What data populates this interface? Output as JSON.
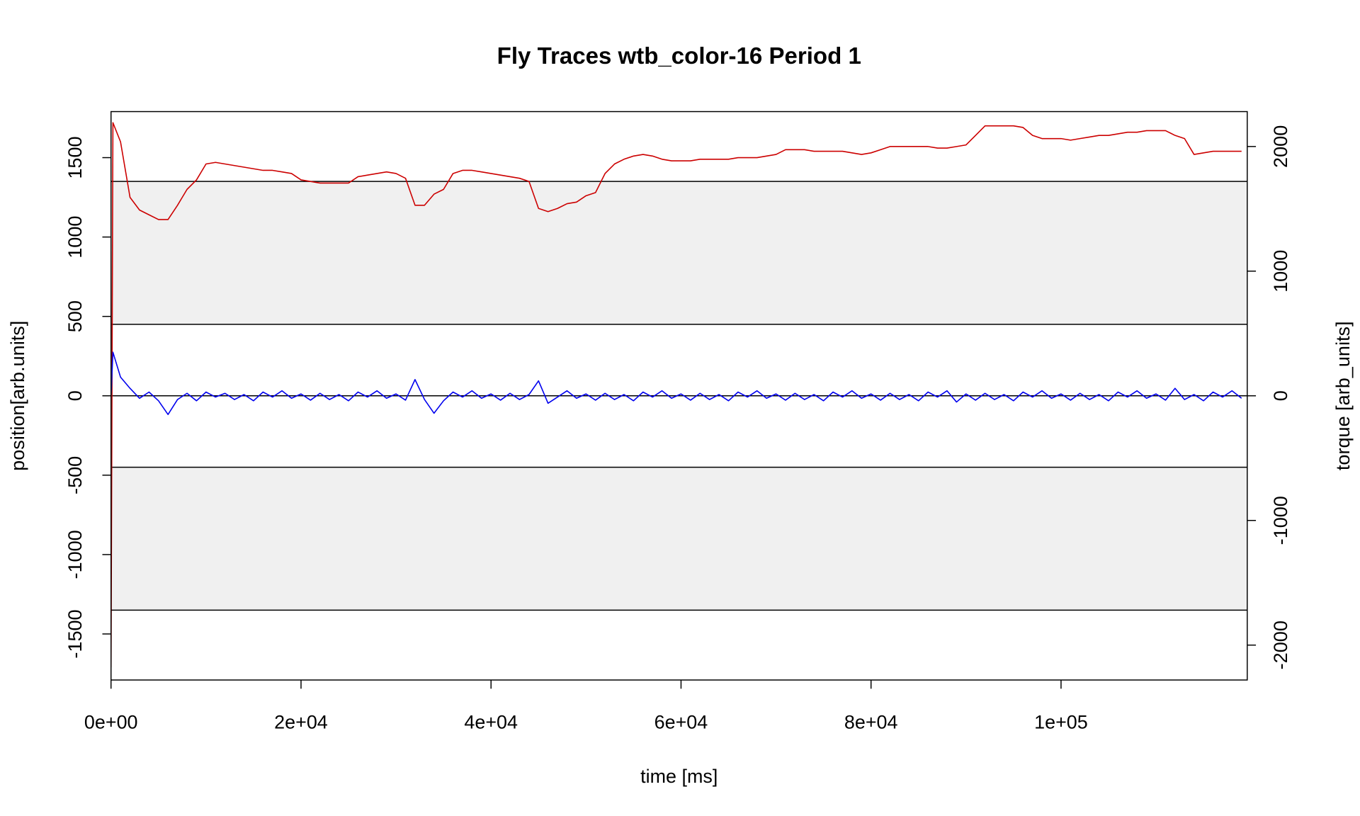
{
  "chart_data": {
    "type": "line",
    "title": "Fly Traces wtb_color-16 Period 1",
    "x_label": "time [ms]",
    "y_label": "position[arb.units]",
    "y2_label": "torque [arb_units]",
    "xlim": [
      0,
      119600
    ],
    "ylim": [
      -1790,
      1790
    ],
    "y2lim": [
      -2280,
      2280
    ],
    "xticks": [
      {
        "value": 0,
        "label": "0e+00"
      },
      {
        "value": 20000,
        "label": "2e+04"
      },
      {
        "value": 40000,
        "label": "4e+04"
      },
      {
        "value": 60000,
        "label": "6e+04"
      },
      {
        "value": 80000,
        "label": "8e+04"
      },
      {
        "value": 100000,
        "label": "1e+05"
      }
    ],
    "yticks": [
      -1500,
      -1000,
      -500,
      0,
      500,
      1000,
      1500
    ],
    "y2ticks": [
      -2000,
      -1000,
      0,
      1000,
      2000
    ],
    "bands": [
      {
        "from": 450,
        "to": 1350,
        "color": "#f0f0f0"
      },
      {
        "from": -1350,
        "to": -450,
        "color": "#f0f0f0"
      }
    ],
    "hlines": [
      0
    ],
    "x": [
      0,
      200,
      1000,
      2000,
      3000,
      4000,
      5000,
      6000,
      7000,
      8000,
      9000,
      10000,
      11000,
      12000,
      13000,
      14000,
      15000,
      16000,
      17000,
      18000,
      19000,
      20000,
      21000,
      22000,
      23000,
      24000,
      25000,
      26000,
      27000,
      28000,
      29000,
      30000,
      31000,
      32000,
      33000,
      34000,
      35000,
      36000,
      37000,
      38000,
      39000,
      40000,
      41000,
      42000,
      43000,
      44000,
      45000,
      46000,
      47000,
      48000,
      49000,
      50000,
      51000,
      52000,
      53000,
      54000,
      55000,
      56000,
      57000,
      58000,
      59000,
      60000,
      61000,
      62000,
      63000,
      64000,
      65000,
      66000,
      67000,
      68000,
      69000,
      70000,
      71000,
      72000,
      73000,
      74000,
      75000,
      76000,
      77000,
      78000,
      79000,
      80000,
      81000,
      82000,
      83000,
      84000,
      85000,
      86000,
      87000,
      88000,
      89000,
      90000,
      91000,
      92000,
      93000,
      94000,
      95000,
      96000,
      97000,
      98000,
      99000,
      100000,
      101000,
      102000,
      103000,
      104000,
      105000,
      106000,
      107000,
      108000,
      109000,
      110000,
      111000,
      112000,
      113000,
      114000,
      115000,
      116000,
      117000,
      118000,
      119000
    ],
    "series": [
      {
        "name": "position",
        "color": "#cc0000",
        "values": [
          -1710,
          1720,
          1600,
          1250,
          1170,
          1140,
          1110,
          1110,
          1200,
          1300,
          1360,
          1460,
          1470,
          1460,
          1450,
          1440,
          1430,
          1420,
          1420,
          1410,
          1400,
          1360,
          1350,
          1340,
          1340,
          1340,
          1340,
          1380,
          1390,
          1400,
          1410,
          1400,
          1370,
          1200,
          1200,
          1270,
          1300,
          1400,
          1420,
          1420,
          1410,
          1400,
          1390,
          1380,
          1370,
          1350,
          1180,
          1160,
          1180,
          1210,
          1220,
          1260,
          1280,
          1400,
          1460,
          1490,
          1510,
          1520,
          1510,
          1490,
          1480,
          1480,
          1480,
          1490,
          1490,
          1490,
          1490,
          1500,
          1500,
          1500,
          1510,
          1520,
          1550,
          1550,
          1550,
          1540,
          1540,
          1540,
          1540,
          1530,
          1520,
          1530,
          1550,
          1570,
          1570,
          1570,
          1570,
          1570,
          1560,
          1560,
          1570,
          1580,
          1640,
          1700,
          1700,
          1700,
          1700,
          1690,
          1640,
          1620,
          1620,
          1620,
          1610,
          1620,
          1630,
          1640,
          1640,
          1650,
          1660,
          1660,
          1670,
          1670,
          1670,
          1640,
          1620,
          1520,
          1530,
          1540,
          1540,
          1540,
          1540
        ]
      },
      {
        "name": "torque",
        "color": "#0000ee",
        "axis": "y2",
        "values": [
          0,
          350,
          150,
          60,
          -20,
          30,
          -40,
          -150,
          -30,
          20,
          -40,
          30,
          -10,
          20,
          -30,
          10,
          -40,
          30,
          -10,
          40,
          -20,
          15,
          -35,
          20,
          -30,
          10,
          -40,
          30,
          -10,
          40,
          -20,
          15,
          -35,
          130,
          -30,
          -140,
          -40,
          30,
          -10,
          40,
          -20,
          15,
          -35,
          20,
          -30,
          10,
          120,
          -60,
          -10,
          40,
          -20,
          15,
          -35,
          20,
          -30,
          10,
          -40,
          30,
          -10,
          40,
          -20,
          15,
          -35,
          20,
          -30,
          10,
          -40,
          30,
          -10,
          40,
          -20,
          15,
          -35,
          20,
          -30,
          10,
          -40,
          30,
          -10,
          40,
          -20,
          15,
          -35,
          20,
          -30,
          10,
          -40,
          30,
          -10,
          40,
          -50,
          15,
          -35,
          20,
          -30,
          10,
          -40,
          30,
          -10,
          40,
          -20,
          15,
          -35,
          20,
          -30,
          10,
          -40,
          30,
          -10,
          40,
          -20,
          15,
          -35,
          60,
          -30,
          10,
          -40,
          30,
          -10,
          40,
          -20
        ]
      }
    ]
  }
}
